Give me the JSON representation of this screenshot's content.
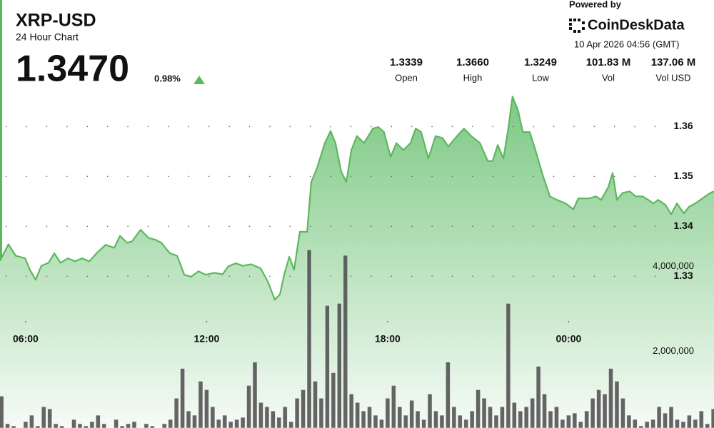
{
  "chart_data": {
    "type": "line",
    "title": "XRP-USD",
    "subtitle": "24 Hour Chart",
    "last_price": "1.3470",
    "change": "0.98%",
    "powered_by": "Powered by",
    "brand": "CoinDeskData",
    "timestamp": "10 Apr 2026 04:56 (GMT)",
    "stats": [
      {
        "value": "1.3339",
        "label": "Open"
      },
      {
        "value": "1.3660",
        "label": "High"
      },
      {
        "value": "1.3249",
        "label": "Low"
      },
      {
        "value": "101.83 M",
        "label": "Vol"
      },
      {
        "value": "137.06 M",
        "label": "Vol USD"
      }
    ],
    "xlim": [
      5.15,
      28.82
    ],
    "xticks": [
      {
        "value": 6,
        "label": "06:00"
      },
      {
        "value": 12,
        "label": "12:00"
      },
      {
        "value": 18,
        "label": "18:00"
      },
      {
        "value": 24,
        "label": "00:00"
      }
    ],
    "ylim": [
      1.2996,
      1.3682
    ],
    "yticks": [
      1.33,
      1.34,
      1.35,
      1.36
    ],
    "y2lim": [
      200000,
      8250000
    ],
    "y2ticks": [
      {
        "value": 2000000,
        "label": "2,000,000"
      },
      {
        "value": 4000000,
        "label": "4,000,000"
      }
    ],
    "grid": true,
    "series": [
      {
        "color": "#5cb85c",
        "type": "area",
        "x": [
          5.15,
          5.43,
          5.67,
          5.98,
          6.14,
          6.33,
          6.52,
          6.76,
          6.95,
          7.16,
          7.4,
          7.64,
          7.87,
          8.11,
          8.35,
          8.65,
          8.94,
          9.13,
          9.36,
          9.53,
          9.81,
          10.07,
          10.31,
          10.5,
          10.78,
          11.02,
          11.26,
          11.49,
          11.73,
          11.97,
          12.25,
          12.53,
          12.72,
          12.96,
          13.2,
          13.48,
          13.79,
          14.03,
          14.26,
          14.43,
          14.57,
          14.74,
          14.9,
          15.09,
          15.33,
          15.47,
          15.66,
          15.92,
          16.11,
          16.27,
          16.46,
          16.63,
          16.8,
          16.98,
          17.22,
          17.51,
          17.69,
          17.88,
          18.1,
          18.29,
          18.52,
          18.76,
          18.93,
          19.11,
          19.35,
          19.59,
          19.82,
          20.01,
          20.3,
          20.53,
          20.77,
          21.06,
          21.32,
          21.48,
          21.65,
          21.84,
          22.0,
          22.14,
          22.33,
          22.48,
          22.71,
          22.9,
          23.14,
          23.38,
          23.61,
          23.9,
          24.16,
          24.32,
          24.68,
          24.91,
          25.08,
          25.32,
          25.46,
          25.6,
          25.79,
          26.03,
          26.22,
          26.45,
          26.64,
          26.81,
          26.97,
          27.21,
          27.4,
          27.59,
          27.82,
          27.99,
          28.23,
          28.46,
          28.7,
          28.82
        ],
        "values": [
          1.3331,
          1.3364,
          1.3341,
          1.3336,
          1.3313,
          1.3293,
          1.3321,
          1.3327,
          1.3346,
          1.3327,
          1.3336,
          1.333,
          1.3336,
          1.333,
          1.3346,
          1.3363,
          1.3357,
          1.3381,
          1.3367,
          1.337,
          1.3393,
          1.3377,
          1.3373,
          1.3367,
          1.3346,
          1.3341,
          1.3303,
          1.3299,
          1.331,
          1.3303,
          1.3307,
          1.3304,
          1.332,
          1.3326,
          1.3321,
          1.3324,
          1.3316,
          1.3289,
          1.3253,
          1.3264,
          1.3303,
          1.3339,
          1.3313,
          1.3389,
          1.3389,
          1.3489,
          1.3517,
          1.3567,
          1.3591,
          1.3567,
          1.351,
          1.3489,
          1.3553,
          1.3581,
          1.3567,
          1.3596,
          1.3599,
          1.3589,
          1.3539,
          1.3567,
          1.3553,
          1.3567,
          1.3596,
          1.3589,
          1.3536,
          1.3581,
          1.3577,
          1.356,
          1.3581,
          1.3596,
          1.3581,
          1.3567,
          1.3531,
          1.3531,
          1.3563,
          1.3536,
          1.3596,
          1.366,
          1.3631,
          1.3589,
          1.3589,
          1.3553,
          1.3503,
          1.346,
          1.3453,
          1.3446,
          1.3434,
          1.3456,
          1.3456,
          1.346,
          1.3453,
          1.3479,
          1.3507,
          1.3453,
          1.3467,
          1.347,
          1.346,
          1.346,
          1.3453,
          1.3446,
          1.3453,
          1.3443,
          1.3424,
          1.3446,
          1.3426,
          1.3439,
          1.3447,
          1.3457,
          1.3467,
          1.347
        ]
      },
      {
        "color": "#4a4a4a",
        "type": "bar",
        "axis": "y2",
        "x": [
          5.2,
          5.4,
          5.6,
          5.8,
          6.0,
          6.2,
          6.4,
          6.6,
          6.8,
          7.0,
          7.2,
          7.4,
          7.6,
          7.8,
          8.0,
          8.2,
          8.4,
          8.6,
          8.8,
          9.0,
          9.2,
          9.4,
          9.6,
          9.8,
          10.0,
          10.2,
          10.4,
          10.6,
          10.8,
          11.0,
          11.2,
          11.4,
          11.6,
          11.8,
          12.0,
          12.2,
          12.4,
          12.6,
          12.8,
          13.0,
          13.2,
          13.4,
          13.6,
          13.8,
          14.0,
          14.2,
          14.4,
          14.6,
          14.8,
          15.0,
          15.2,
          15.4,
          15.6,
          15.8,
          16.0,
          16.2,
          16.4,
          16.6,
          16.8,
          17.0,
          17.2,
          17.4,
          17.6,
          17.8,
          18.0,
          18.2,
          18.4,
          18.6,
          18.8,
          19.0,
          19.2,
          19.4,
          19.6,
          19.8,
          20.0,
          20.2,
          20.4,
          20.6,
          20.8,
          21.0,
          21.2,
          21.4,
          21.6,
          21.8,
          22.0,
          22.2,
          22.4,
          22.6,
          22.8,
          23.0,
          23.2,
          23.4,
          23.6,
          23.8,
          24.0,
          24.2,
          24.4,
          24.6,
          24.8,
          25.0,
          25.2,
          25.4,
          25.6,
          25.8,
          26.0,
          26.2,
          26.4,
          26.6,
          26.8,
          27.0,
          27.2,
          27.4,
          27.6,
          27.8,
          28.0,
          28.2,
          28.4,
          28.6,
          28.8
        ],
        "values": [
          950000,
          300000,
          250000,
          200000,
          350000,
          500000,
          250000,
          700000,
          650000,
          300000,
          250000,
          200000,
          400000,
          300000,
          250000,
          350000,
          500000,
          300000,
          200000,
          400000,
          250000,
          300000,
          350000,
          200000,
          300000,
          250000,
          200000,
          300000,
          400000,
          900000,
          1600000,
          600000,
          500000,
          1300000,
          1100000,
          700000,
          400000,
          500000,
          350000,
          400000,
          450000,
          1200000,
          1750000,
          800000,
          700000,
          600000,
          450000,
          700000,
          350000,
          900000,
          1100000,
          4390000,
          1300000,
          900000,
          3080000,
          1500000,
          3130000,
          4260000,
          1000000,
          800000,
          600000,
          700000,
          500000,
          400000,
          900000,
          1200000,
          700000,
          500000,
          850000,
          600000,
          400000,
          1000000,
          600000,
          500000,
          1750000,
          700000,
          500000,
          400000,
          600000,
          1100000,
          900000,
          700000,
          500000,
          700000,
          3130000,
          800000,
          600000,
          700000,
          900000,
          1650000,
          1000000,
          600000,
          700000,
          400000,
          500000,
          550000,
          350000,
          600000,
          900000,
          1100000,
          1000000,
          1600000,
          1300000,
          900000,
          500000,
          400000,
          250000,
          350000,
          400000,
          700000,
          550000,
          700000,
          400000,
          350000,
          500000,
          400000,
          600000,
          300000,
          650000
        ]
      }
    ]
  }
}
